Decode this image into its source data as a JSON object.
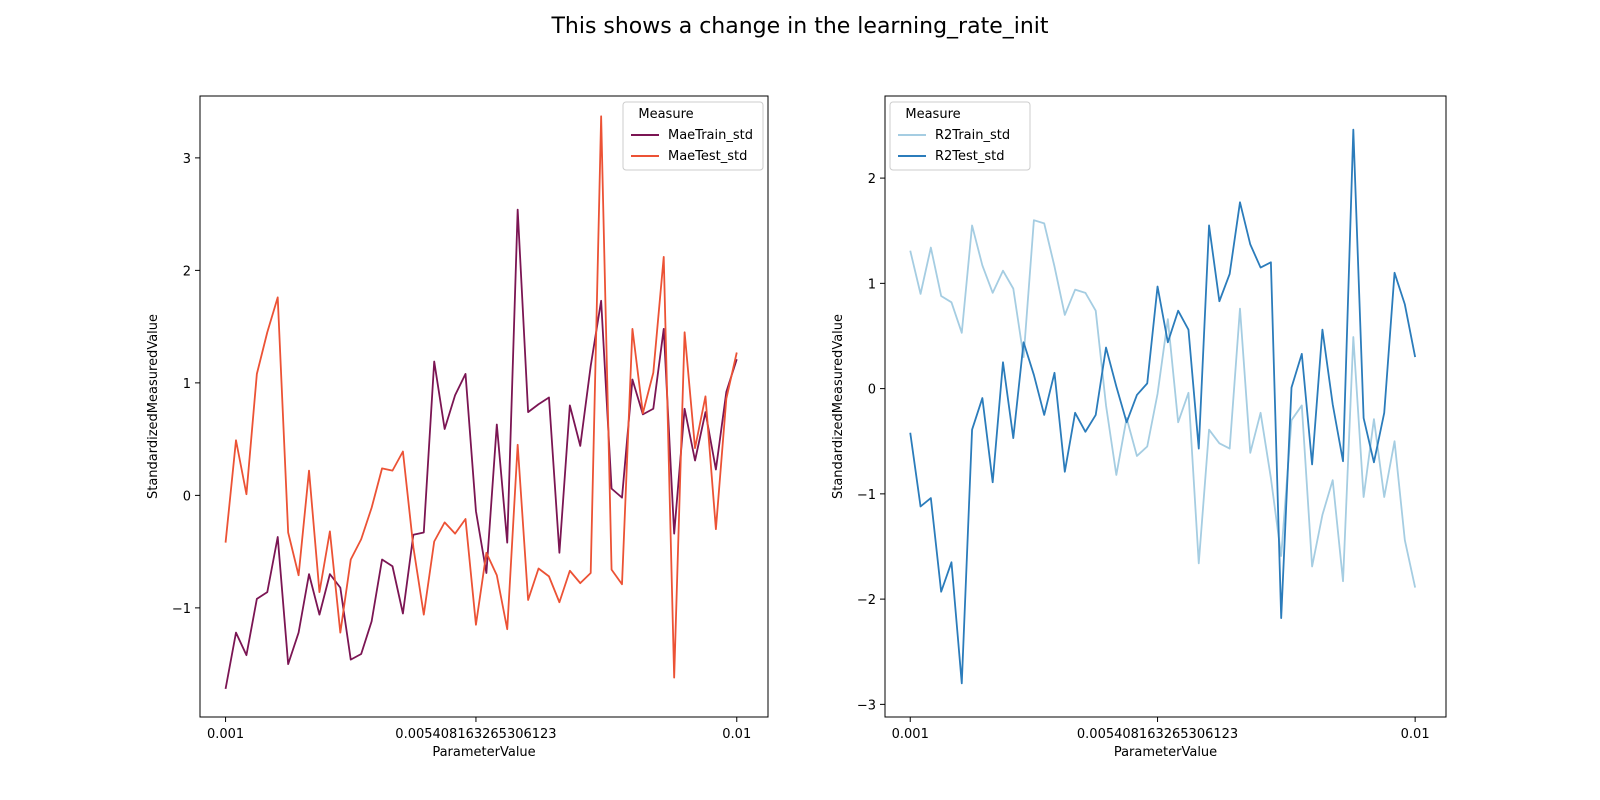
{
  "figure": {
    "title": "This shows a change in the learning_rate_init"
  },
  "chart_data": [
    {
      "type": "line",
      "title": "",
      "xlabel": "ParameterValue",
      "ylabel": "StandardizedMeasuredValue",
      "xlim": [
        0.00055,
        0.01055
      ],
      "ylim": [
        -1.97,
        3.55
      ],
      "xticks": [
        0.001,
        0.005408163265306123,
        0.01
      ],
      "xtick_labels": [
        "0.001",
        "0.005408163265306123",
        "0.01"
      ],
      "yticks": [
        -1,
        0,
        1,
        2,
        3
      ],
      "ytick_labels": [
        "−1",
        "0",
        "1",
        "2",
        "3"
      ],
      "grid": false,
      "legend": {
        "title": "Measure",
        "placement": "upper right"
      },
      "x_start": 0.001,
      "x_end": 0.01,
      "series": [
        {
          "name": "MaeTrain_std",
          "color": "#7b1553",
          "values": [
            -1.72,
            -1.22,
            -1.42,
            -0.92,
            -0.86,
            -0.37,
            -1.5,
            -1.22,
            -0.7,
            -1.06,
            -0.7,
            -0.82,
            -1.46,
            -1.41,
            -1.12,
            -0.57,
            -0.63,
            -1.05,
            -0.35,
            -0.33,
            1.19,
            0.59,
            0.89,
            1.08,
            -0.14,
            -0.69,
            0.63,
            -0.42,
            2.54,
            0.74,
            0.81,
            0.87,
            -0.51,
            0.8,
            0.44,
            1.15,
            1.73,
            0.06,
            -0.02,
            1.03,
            0.72,
            0.77,
            1.48,
            -0.34,
            0.77,
            0.31,
            0.74,
            0.23,
            0.92,
            1.21
          ]
        },
        {
          "name": "MaeTest_std",
          "color": "#ec5235",
          "values": [
            -0.42,
            0.49,
            0.01,
            1.08,
            1.45,
            1.76,
            -0.33,
            -0.71,
            0.22,
            -0.86,
            -0.32,
            -1.22,
            -0.57,
            -0.39,
            -0.11,
            0.24,
            0.22,
            0.39,
            -0.46,
            -1.06,
            -0.41,
            -0.24,
            -0.34,
            -0.21,
            -1.15,
            -0.51,
            -0.71,
            -1.19,
            0.45,
            -0.93,
            -0.65,
            -0.72,
            -0.95,
            -0.67,
            -0.78,
            -0.69,
            3.37,
            -0.66,
            -0.79,
            1.48,
            0.73,
            1.09,
            2.12,
            -1.62,
            1.45,
            0.42,
            0.88,
            -0.3,
            0.86,
            1.27
          ]
        }
      ]
    },
    {
      "type": "line",
      "title": "",
      "xlabel": "ParameterValue",
      "ylabel": "StandardizedMeasuredValue",
      "xlim": [
        0.00055,
        0.01055
      ],
      "ylim": [
        -3.12,
        2.78
      ],
      "xticks": [
        0.001,
        0.005408163265306123,
        0.01
      ],
      "xtick_labels": [
        "0.001",
        "0.005408163265306123",
        "0.01"
      ],
      "yticks": [
        -3,
        -2,
        -1,
        0,
        1,
        2
      ],
      "ytick_labels": [
        "−3",
        "−2",
        "−1",
        "0",
        "1",
        "2"
      ],
      "grid": false,
      "legend": {
        "title": "Measure",
        "placement": "upper left"
      },
      "x_start": 0.001,
      "x_end": 0.01,
      "series": [
        {
          "name": "R2Train_std",
          "color": "#a5cde2",
          "values": [
            1.31,
            0.9,
            1.34,
            0.88,
            0.82,
            0.53,
            1.55,
            1.17,
            0.91,
            1.12,
            0.95,
            0.3,
            1.6,
            1.57,
            1.16,
            0.7,
            0.94,
            0.91,
            0.74,
            -0.16,
            -0.82,
            -0.28,
            -0.64,
            -0.55,
            -0.05,
            0.66,
            -0.32,
            -0.04,
            -1.66,
            -0.39,
            -0.52,
            -0.57,
            0.76,
            -0.61,
            -0.23,
            -0.85,
            -1.59,
            -0.3,
            -0.16,
            -1.69,
            -1.2,
            -0.87,
            -1.83,
            0.49,
            -1.03,
            -0.29,
            -1.03,
            -0.5,
            -1.44,
            -1.89
          ]
        },
        {
          "name": "R2Test_std",
          "color": "#2b7cbb",
          "values": [
            -0.42,
            -1.12,
            -1.04,
            -1.93,
            -1.65,
            -2.8,
            -0.39,
            -0.09,
            -0.89,
            0.25,
            -0.47,
            0.44,
            0.13,
            -0.25,
            0.15,
            -0.79,
            -0.23,
            -0.41,
            -0.25,
            0.39,
            0.02,
            -0.32,
            -0.06,
            0.05,
            0.97,
            0.44,
            0.74,
            0.56,
            -0.57,
            1.55,
            0.83,
            1.09,
            1.77,
            1.37,
            1.15,
            1.2,
            -2.18,
            0.01,
            0.33,
            -0.72,
            0.56,
            -0.15,
            -0.69,
            2.46,
            -0.28,
            -0.7,
            -0.23,
            1.1,
            0.8,
            0.3
          ]
        }
      ]
    }
  ]
}
